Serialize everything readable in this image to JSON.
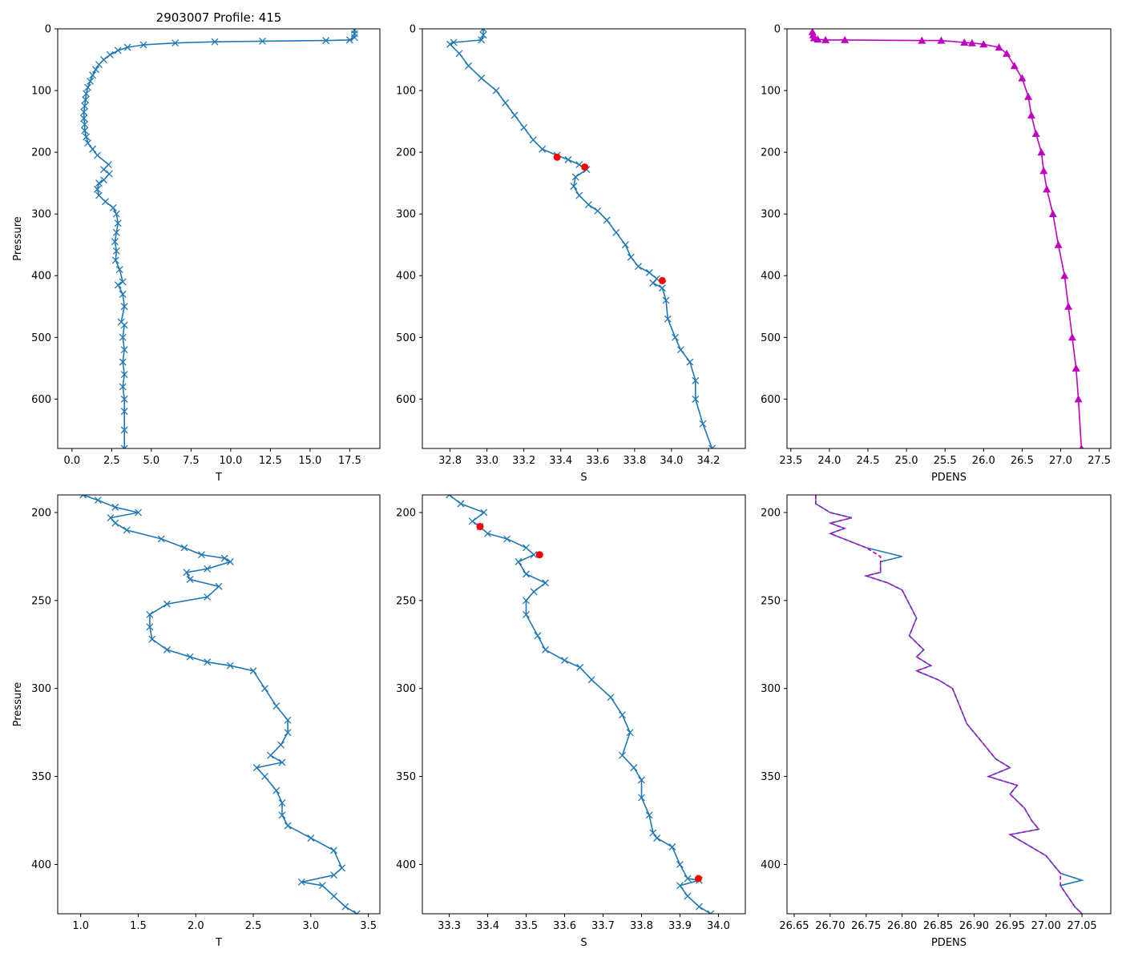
{
  "chart_data": [
    {
      "type": "line",
      "title": "2903007 Profile: 415",
      "xlabel": "T",
      "ylabel": "Pressure",
      "xlim": [
        -0.9,
        19.4
      ],
      "ylim": [
        680,
        0
      ],
      "xticks": [
        0.0,
        2.5,
        5.0,
        7.5,
        10.0,
        12.5,
        15.0,
        17.5
      ],
      "xtick_labels": [
        "0.0",
        "2.5",
        "5.0",
        "7.5",
        "10.0",
        "12.5",
        "15.0",
        "17.5"
      ],
      "yticks": [
        0,
        100,
        200,
        300,
        400,
        500,
        600
      ],
      "ytick_labels": [
        "0",
        "100",
        "200",
        "300",
        "400",
        "500",
        "600"
      ],
      "series": [
        {
          "name": "T",
          "color": "#1f77b4",
          "marker": "x",
          "x": [
            17.8,
            17.8,
            17.8,
            17.5,
            16.0,
            12.0,
            9.0,
            6.5,
            4.5,
            3.5,
            2.9,
            2.4,
            2.0,
            1.7,
            1.5,
            1.3,
            1.15,
            1.0,
            0.9,
            0.85,
            0.8,
            0.75,
            0.75,
            0.8,
            0.8,
            0.9,
            1.0,
            1.3,
            1.6,
            2.3,
            2.0,
            2.35,
            2.0,
            1.7,
            1.6,
            1.7,
            2.1,
            2.6,
            2.8,
            2.9,
            2.8,
            2.7,
            2.8,
            2.75,
            3.0,
            3.2,
            2.9,
            3.2,
            3.3,
            3.1,
            3.3,
            3.2,
            3.3,
            3.2,
            3.3,
            3.2,
            3.3,
            3.3,
            3.3,
            3.3
          ],
          "y": [
            2,
            8,
            14,
            18,
            19,
            20,
            21,
            23,
            26,
            30,
            35,
            42,
            50,
            58,
            66,
            75,
            85,
            95,
            105,
            115,
            125,
            135,
            145,
            155,
            165,
            175,
            185,
            195,
            205,
            220,
            228,
            235,
            245,
            250,
            260,
            270,
            280,
            290,
            300,
            315,
            330,
            345,
            360,
            375,
            390,
            410,
            415,
            430,
            450,
            475,
            480,
            500,
            520,
            540,
            560,
            580,
            600,
            620,
            650,
            680
          ]
        }
      ]
    },
    {
      "type": "line",
      "title": "",
      "xlabel": "S",
      "ylabel": "",
      "xlim": [
        32.65,
        34.4
      ],
      "ylim": [
        680,
        0
      ],
      "xticks": [
        32.8,
        33.0,
        33.2,
        33.4,
        33.6,
        33.8,
        34.0,
        34.2
      ],
      "xtick_labels": [
        "32.8",
        "33.0",
        "33.2",
        "33.4",
        "33.6",
        "33.8",
        "34.0",
        "34.2"
      ],
      "yticks": [
        0,
        100,
        200,
        300,
        400,
        500,
        600
      ],
      "ytick_labels": [
        "0",
        "100",
        "200",
        "300",
        "400",
        "500",
        "600"
      ],
      "series": [
        {
          "name": "S",
          "color": "#1f77b4",
          "marker": "x",
          "x": [
            32.98,
            32.98,
            32.97,
            32.82,
            32.8,
            32.85,
            32.9,
            32.97,
            33.05,
            33.1,
            33.15,
            33.2,
            33.25,
            33.3,
            33.38,
            33.44,
            33.5,
            33.54,
            33.48,
            33.47,
            33.5,
            33.55,
            33.6,
            33.65,
            33.7,
            33.75,
            33.78,
            33.82,
            33.88,
            33.92,
            33.9,
            33.95,
            33.97,
            33.98,
            34.02,
            34.05,
            34.1,
            34.13,
            34.13,
            34.17,
            34.22
          ],
          "y": [
            0,
            10,
            18,
            22,
            25,
            40,
            60,
            80,
            100,
            120,
            140,
            160,
            180,
            195,
            205,
            212,
            220,
            228,
            240,
            255,
            270,
            285,
            295,
            310,
            330,
            350,
            370,
            385,
            395,
            405,
            412,
            420,
            440,
            470,
            500,
            520,
            540,
            570,
            600,
            640,
            680
          ]
        }
      ],
      "points": {
        "name": "flagged",
        "color": "#ff0000",
        "marker": "o",
        "x": [
          33.38,
          33.53,
          33.95
        ],
        "y": [
          208,
          224,
          408
        ]
      }
    },
    {
      "type": "line",
      "title": "",
      "xlabel": "PDENS",
      "ylabel": "",
      "xlim": [
        23.45,
        27.65
      ],
      "ylim": [
        680,
        0
      ],
      "xticks": [
        23.5,
        24.0,
        24.5,
        25.0,
        25.5,
        26.0,
        26.5,
        27.0,
        27.5
      ],
      "xtick_labels": [
        "23.5",
        "24.0",
        "24.5",
        "25.0",
        "25.5",
        "26.0",
        "26.5",
        "27.0",
        "27.5"
      ],
      "yticks": [
        0,
        100,
        200,
        300,
        400,
        500,
        600
      ],
      "ytick_labels": [
        "0",
        "100",
        "200",
        "300",
        "400",
        "500",
        "600"
      ],
      "series": [
        {
          "name": "PDENS",
          "color": "#c000c0",
          "marker": "^",
          "x": [
            23.78,
            23.79,
            23.8,
            23.85,
            23.95,
            24.2,
            25.2,
            25.45,
            25.75,
            25.85,
            26.0,
            26.2,
            26.3,
            26.4,
            26.5,
            26.58,
            26.62,
            26.68,
            26.75,
            26.78,
            26.82,
            26.9,
            26.97,
            27.05,
            27.1,
            27.15,
            27.2,
            27.23,
            27.27
          ],
          "y": [
            5,
            10,
            15,
            17,
            18,
            18,
            19,
            19,
            22,
            23,
            25,
            30,
            40,
            60,
            80,
            110,
            140,
            170,
            200,
            230,
            260,
            300,
            350,
            400,
            450,
            500,
            550,
            600,
            680
          ]
        }
      ]
    },
    {
      "type": "line",
      "title": "",
      "xlabel": "T",
      "ylabel": "Pressure",
      "xlim": [
        0.8,
        3.6
      ],
      "ylim": [
        428,
        190
      ],
      "xticks": [
        1.0,
        1.5,
        2.0,
        2.5,
        3.0,
        3.5
      ],
      "xtick_labels": [
        "1.0",
        "1.5",
        "2.0",
        "2.5",
        "3.0",
        "3.5"
      ],
      "yticks": [
        200,
        250,
        300,
        350,
        400
      ],
      "ytick_labels": [
        "200",
        "250",
        "300",
        "350",
        "400"
      ],
      "series": [
        {
          "name": "T",
          "color": "#1f77b4",
          "marker": "x",
          "x": [
            1.02,
            1.15,
            1.3,
            1.5,
            1.26,
            1.3,
            1.4,
            1.7,
            1.9,
            2.05,
            2.25,
            2.3,
            2.1,
            1.92,
            1.95,
            2.2,
            2.1,
            1.75,
            1.6,
            1.6,
            1.62,
            1.75,
            1.95,
            2.1,
            2.3,
            2.5,
            2.6,
            2.7,
            2.8,
            2.8,
            2.74,
            2.65,
            2.75,
            2.53,
            2.6,
            2.7,
            2.75,
            2.75,
            2.8,
            3.0,
            3.2,
            3.27,
            3.2,
            2.92,
            3.1,
            3.2,
            3.3,
            3.4
          ],
          "y": [
            190,
            193,
            197,
            200,
            203,
            206,
            210,
            215,
            220,
            224,
            226,
            228,
            232,
            234,
            238,
            242,
            248,
            252,
            258,
            265,
            272,
            278,
            282,
            285,
            287,
            290,
            300,
            310,
            318,
            325,
            332,
            338,
            342,
            345,
            350,
            358,
            365,
            372,
            378,
            385,
            392,
            402,
            406,
            410,
            412,
            418,
            424,
            428
          ]
        }
      ]
    },
    {
      "type": "line",
      "title": "",
      "xlabel": "S",
      "ylabel": "",
      "xlim": [
        33.23,
        34.07
      ],
      "ylim": [
        428,
        190
      ],
      "xticks": [
        33.3,
        33.4,
        33.5,
        33.6,
        33.7,
        33.8,
        33.9,
        34.0
      ],
      "xtick_labels": [
        "33.3",
        "33.4",
        "33.5",
        "33.6",
        "33.7",
        "33.8",
        "33.9",
        "34.0"
      ],
      "yticks": [
        200,
        250,
        300,
        350,
        400
      ],
      "ytick_labels": [
        "200",
        "250",
        "300",
        "350",
        "400"
      ],
      "series": [
        {
          "name": "S",
          "color": "#1f77b4",
          "marker": "x",
          "x": [
            33.3,
            33.33,
            33.39,
            33.36,
            33.38,
            33.4,
            33.45,
            33.5,
            33.52,
            33.48,
            33.5,
            33.55,
            33.52,
            33.5,
            33.5,
            33.53,
            33.55,
            33.6,
            33.64,
            33.67,
            33.72,
            33.75,
            33.77,
            33.75,
            33.78,
            33.8,
            33.8,
            33.82,
            33.83,
            33.84,
            33.88,
            33.9,
            33.92,
            33.95,
            33.9,
            33.92,
            33.95,
            33.98
          ],
          "y": [
            190,
            195,
            200,
            205,
            208,
            212,
            215,
            220,
            224,
            228,
            235,
            240,
            245,
            250,
            258,
            270,
            278,
            284,
            288,
            295,
            305,
            315,
            325,
            338,
            345,
            352,
            362,
            372,
            382,
            385,
            390,
            400,
            408,
            409,
            412,
            418,
            424,
            428
          ]
        }
      ],
      "points": {
        "name": "flagged",
        "color": "#ff0000",
        "marker": "o",
        "x": [
          33.38,
          33.535,
          33.948
        ],
        "y": [
          208,
          224,
          408
        ]
      }
    },
    {
      "type": "line",
      "title": "",
      "xlabel": "PDENS",
      "ylabel": "",
      "xlim": [
        26.64,
        27.09
      ],
      "ylim": [
        428,
        190
      ],
      "xticks": [
        26.65,
        26.7,
        26.75,
        26.8,
        26.85,
        26.9,
        26.95,
        27.0,
        27.05
      ],
      "xtick_labels": [
        "26.65",
        "26.70",
        "26.75",
        "26.80",
        "26.85",
        "26.90",
        "26.95",
        "27.00",
        "27.05"
      ],
      "yticks": [
        200,
        250,
        300,
        350,
        400
      ],
      "ytick_labels": [
        "200",
        "250",
        "300",
        "350",
        "400"
      ],
      "series": [
        {
          "name": "PDENS (blue)",
          "color": "#1f77b4",
          "marker": "",
          "x": [
            26.68,
            26.68,
            26.7,
            26.73,
            26.7,
            26.72,
            26.7,
            26.75,
            26.8,
            26.77,
            26.77,
            26.75,
            26.78,
            26.8,
            26.81,
            26.82,
            26.81,
            26.83,
            26.82,
            26.84,
            26.82,
            26.85,
            26.87,
            26.88,
            26.89,
            26.9,
            26.91,
            26.93,
            26.95,
            26.92,
            26.96,
            26.95,
            26.97,
            26.98,
            26.99,
            26.95,
            27.0,
            27.02,
            27.05,
            27.02,
            27.03,
            27.04,
            27.05
          ],
          "y": [
            190,
            195,
            200,
            203,
            206,
            209,
            212,
            220,
            225,
            228,
            234,
            236,
            240,
            244,
            252,
            260,
            270,
            278,
            282,
            287,
            290,
            295,
            300,
            310,
            320,
            325,
            330,
            340,
            345,
            350,
            355,
            360,
            368,
            375,
            380,
            383,
            395,
            405,
            409,
            412,
            418,
            424,
            428
          ]
        },
        {
          "name": "PDENS (magenta dashed)",
          "color": "#c000c0",
          "marker": "",
          "x": [
            26.68,
            26.68,
            26.7,
            26.73,
            26.7,
            26.72,
            26.7,
            26.75,
            26.77,
            26.77,
            26.77,
            26.75,
            26.78,
            26.8,
            26.81,
            26.82,
            26.81,
            26.83,
            26.82,
            26.84,
            26.82,
            26.85,
            26.87,
            26.88,
            26.89,
            26.9,
            26.91,
            26.93,
            26.95,
            26.92,
            26.96,
            26.95,
            26.97,
            26.98,
            26.99,
            26.95,
            27.0,
            27.02,
            27.02,
            27.02,
            27.03,
            27.04,
            27.05
          ],
          "y": [
            190,
            195,
            200,
            203,
            206,
            209,
            212,
            220,
            225,
            228,
            234,
            236,
            240,
            244,
            252,
            260,
            270,
            278,
            282,
            287,
            290,
            295,
            300,
            310,
            320,
            325,
            330,
            340,
            345,
            350,
            355,
            360,
            368,
            375,
            380,
            383,
            395,
            405,
            409,
            412,
            418,
            424,
            428
          ]
        }
      ]
    }
  ]
}
